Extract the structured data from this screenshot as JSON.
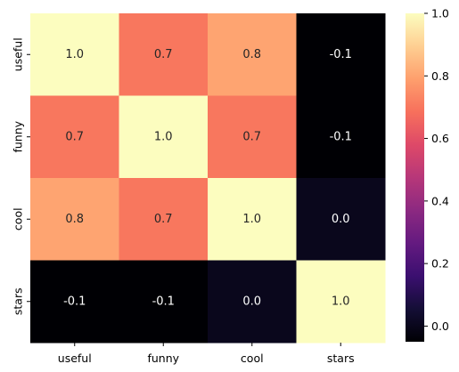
{
  "chart_data": {
    "type": "heatmap",
    "title": "",
    "xlabel": "",
    "ylabel": "",
    "x_categories": [
      "useful",
      "funny",
      "cool",
      "stars"
    ],
    "y_categories": [
      "useful",
      "funny",
      "cool",
      "stars"
    ],
    "values": [
      [
        1.0,
        0.7,
        0.8,
        -0.1
      ],
      [
        0.7,
        1.0,
        0.7,
        -0.1
      ],
      [
        0.8,
        0.7,
        1.0,
        0.0
      ],
      [
        -0.1,
        -0.1,
        0.0,
        1.0
      ]
    ],
    "annotations": [
      [
        "1.0",
        "0.7",
        "0.8",
        "-0.1"
      ],
      [
        "0.7",
        "1.0",
        "0.7",
        "-0.1"
      ],
      [
        "0.8",
        "0.7",
        "1.0",
        "0.0"
      ],
      [
        "-0.1",
        "-0.1",
        "0.0",
        "1.0"
      ]
    ],
    "colormap": "magma",
    "colorbar": {
      "range": [
        -0.05,
        1.0
      ],
      "ticks": [
        0.0,
        0.2,
        0.4,
        0.6,
        0.8,
        1.0
      ],
      "tick_labels": [
        "0.0",
        "0.2",
        "0.4",
        "0.6",
        "0.8",
        "1.0"
      ]
    },
    "colors": {
      "high_value": "#fcfdbf",
      "value_0.8": "#fea772",
      "value_0.7": "#f7765c",
      "value_0.0": "#110e2f",
      "value_-0.1": "#000004"
    }
  }
}
